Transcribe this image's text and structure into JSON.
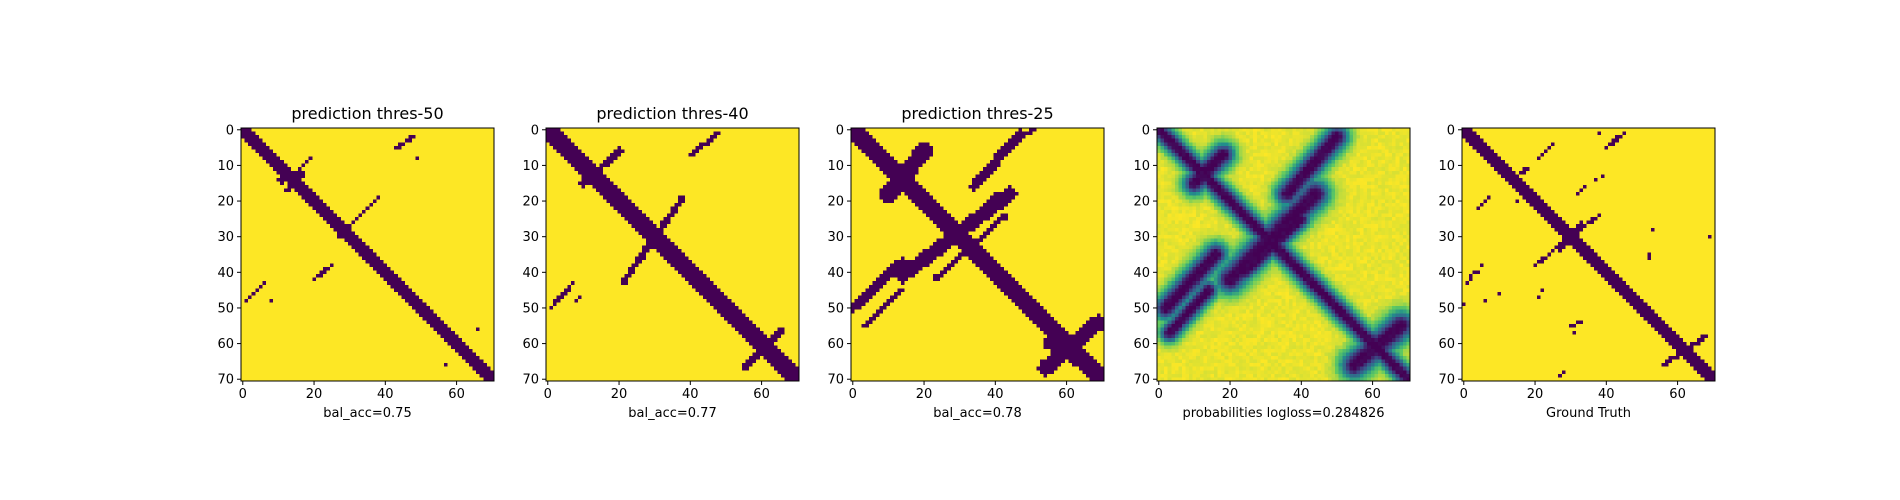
{
  "chart_data": [
    {
      "type": "heatmap",
      "title": "prediction thres-50",
      "xlabel": "bal_acc=0.75",
      "ylabel": "",
      "grid_size": 71,
      "x_range": [
        0,
        70
      ],
      "y_range": [
        0,
        70
      ],
      "y_axis": "inverted",
      "grid": false,
      "xticks": [
        0,
        20,
        40,
        60
      ],
      "yticks": [
        0,
        10,
        20,
        30,
        40,
        50,
        60,
        70
      ],
      "colormap": "viridis-binary",
      "features": [
        {
          "kind": "line",
          "from": [
            0,
            0
          ],
          "to": [
            70,
            70
          ],
          "width": 1.6
        },
        {
          "kind": "line",
          "from": [
            11,
            14
          ],
          "to": [
            16,
            12
          ],
          "width": 1.0
        },
        {
          "kind": "line",
          "from": [
            17,
            10
          ],
          "to": [
            19,
            8
          ],
          "width": 0.7
        },
        {
          "kind": "line",
          "from": [
            12,
            17
          ],
          "to": [
            17,
            13
          ],
          "width": 0.7
        },
        {
          "kind": "line",
          "from": [
            15,
            16
          ],
          "to": [
            22,
            20
          ],
          "width": 0.6
        },
        {
          "kind": "line",
          "from": [
            24,
            26
          ],
          "to": [
            29,
            30
          ],
          "width": 0.7
        },
        {
          "kind": "line",
          "from": [
            27,
            30
          ],
          "to": [
            38,
            19
          ],
          "width": 0.7
        },
        {
          "kind": "line",
          "from": [
            20,
            42
          ],
          "to": [
            25,
            38
          ],
          "width": 0.6
        },
        {
          "kind": "line",
          "from": [
            43,
            5
          ],
          "to": [
            48,
            2
          ],
          "width": 0.6
        },
        {
          "kind": "dot",
          "at": [
            49,
            8
          ],
          "width": 0.4
        },
        {
          "kind": "line",
          "from": [
            1,
            48
          ],
          "to": [
            6,
            43
          ],
          "width": 0.6
        },
        {
          "kind": "dot",
          "at": [
            8,
            48
          ],
          "width": 0.4
        },
        {
          "kind": "dot",
          "at": [
            66,
            56
          ],
          "width": 0.4
        },
        {
          "kind": "dot",
          "at": [
            57,
            66
          ],
          "width": 0.4
        }
      ]
    },
    {
      "type": "heatmap",
      "title": "prediction thres-40",
      "xlabel": "bal_acc=0.77",
      "ylabel": "",
      "grid_size": 71,
      "x_range": [
        0,
        70
      ],
      "y_range": [
        0,
        70
      ],
      "y_axis": "inverted",
      "grid": false,
      "xticks": [
        0,
        20,
        40,
        60
      ],
      "yticks": [
        0,
        10,
        20,
        30,
        40,
        50,
        60,
        70
      ],
      "colormap": "viridis-binary",
      "features": [
        {
          "kind": "line",
          "from": [
            0,
            0
          ],
          "to": [
            70,
            70
          ],
          "width": 2.2
        },
        {
          "kind": "line",
          "from": [
            10,
            15
          ],
          "to": [
            20,
            6
          ],
          "width": 1.0
        },
        {
          "kind": "line",
          "from": [
            10,
            11
          ],
          "to": [
            17,
            16
          ],
          "width": 0.7
        },
        {
          "kind": "line",
          "from": [
            15,
            18
          ],
          "to": [
            22,
            21
          ],
          "width": 0.6
        },
        {
          "kind": "line",
          "from": [
            21,
            43
          ],
          "to": [
            38,
            19
          ],
          "width": 0.9
        },
        {
          "kind": "line",
          "from": [
            40,
            7
          ],
          "to": [
            48,
            1
          ],
          "width": 0.7
        },
        {
          "kind": "line",
          "from": [
            1,
            50
          ],
          "to": [
            7,
            43
          ],
          "width": 0.6
        },
        {
          "kind": "line",
          "from": [
            8,
            48
          ],
          "to": [
            9,
            47
          ],
          "width": 0.5
        },
        {
          "kind": "line",
          "from": [
            55,
            67
          ],
          "to": [
            66,
            56
          ],
          "width": 0.9
        }
      ]
    },
    {
      "type": "heatmap",
      "title": "prediction thres-25",
      "xlabel": "bal_acc=0.78",
      "ylabel": "",
      "grid_size": 71,
      "x_range": [
        0,
        70
      ],
      "y_range": [
        0,
        70
      ],
      "y_axis": "inverted",
      "grid": false,
      "xticks": [
        0,
        20,
        40,
        60
      ],
      "yticks": [
        0,
        10,
        20,
        30,
        40,
        50,
        60,
        70
      ],
      "colormap": "viridis-binary",
      "features": [
        {
          "kind": "line",
          "from": [
            0,
            0
          ],
          "to": [
            70,
            70
          ],
          "width": 2.8
        },
        {
          "kind": "line",
          "from": [
            10,
            18
          ],
          "to": [
            20,
            6
          ],
          "width": 2.4
        },
        {
          "kind": "line",
          "from": [
            0,
            50
          ],
          "to": [
            14,
            37
          ],
          "width": 1.4
        },
        {
          "kind": "line",
          "from": [
            14,
            41
          ],
          "to": [
            44,
            18
          ],
          "width": 2.0
        },
        {
          "kind": "line",
          "from": [
            34,
            16
          ],
          "to": [
            47,
            1
          ],
          "width": 1.4
        },
        {
          "kind": "line",
          "from": [
            45,
            3
          ],
          "to": [
            51,
            0
          ],
          "width": 0.8
        },
        {
          "kind": "line",
          "from": [
            23,
            42
          ],
          "to": [
            43,
            24
          ],
          "width": 0.8
        },
        {
          "kind": "line",
          "from": [
            3,
            55
          ],
          "to": [
            14,
            45
          ],
          "width": 0.7
        },
        {
          "kind": "line",
          "from": [
            54,
            67
          ],
          "to": [
            69,
            54
          ],
          "width": 2.2
        },
        {
          "kind": "line",
          "from": [
            55,
            60
          ],
          "to": [
            68,
            68
          ],
          "width": 1.6
        },
        {
          "kind": "line",
          "from": [
            36,
            23
          ],
          "to": [
            40,
            18
          ],
          "width": 0.7
        }
      ]
    },
    {
      "type": "heatmap",
      "title": "",
      "xlabel": "probabilities logloss=0.284826",
      "ylabel": "",
      "grid_size": 71,
      "x_range": [
        0,
        70
      ],
      "y_range": [
        0,
        70
      ],
      "y_axis": "inverted",
      "grid": false,
      "xticks": [
        0,
        20,
        40,
        60
      ],
      "yticks": [
        0,
        10,
        20,
        30,
        40,
        50,
        60,
        70
      ],
      "colormap": "viridis-continuous",
      "features": [
        {
          "kind": "line",
          "from": [
            0,
            0
          ],
          "to": [
            70,
            70
          ],
          "width": 2.0
        },
        {
          "kind": "line",
          "from": [
            10,
            15
          ],
          "to": [
            18,
            7
          ],
          "width": 2.5
        },
        {
          "kind": "line",
          "from": [
            2,
            50
          ],
          "to": [
            16,
            35
          ],
          "width": 2.5
        },
        {
          "kind": "line",
          "from": [
            20,
            42
          ],
          "to": [
            44,
            18
          ],
          "width": 3.0
        },
        {
          "kind": "line",
          "from": [
            36,
            18
          ],
          "to": [
            50,
            2
          ],
          "width": 2.5
        },
        {
          "kind": "line",
          "from": [
            24,
            40
          ],
          "to": [
            40,
            25
          ],
          "width": 2.0
        },
        {
          "kind": "line",
          "from": [
            55,
            66
          ],
          "to": [
            68,
            55
          ],
          "width": 3.0
        },
        {
          "kind": "line",
          "from": [
            3,
            57
          ],
          "to": [
            14,
            45
          ],
          "width": 2.0
        }
      ]
    },
    {
      "type": "heatmap",
      "title": "",
      "xlabel": "Ground Truth",
      "ylabel": "",
      "grid_size": 71,
      "x_range": [
        0,
        70
      ],
      "y_range": [
        0,
        70
      ],
      "y_axis": "inverted",
      "grid": false,
      "xticks": [
        0,
        20,
        40,
        60
      ],
      "yticks": [
        0,
        10,
        20,
        30,
        40,
        50,
        60,
        70
      ],
      "colormap": "viridis-binary",
      "features": [
        {
          "kind": "line",
          "from": [
            0,
            0
          ],
          "to": [
            70,
            70
          ],
          "width": 1.8
        },
        {
          "kind": "line",
          "from": [
            27,
            33
          ],
          "to": [
            33,
            27
          ],
          "width": 1.0
        },
        {
          "kind": "line",
          "from": [
            20,
            38
          ],
          "to": [
            38,
            24
          ],
          "width": 0.5
        },
        {
          "kind": "line",
          "from": [
            40,
            5
          ],
          "to": [
            45,
            1
          ],
          "width": 0.5
        },
        {
          "kind": "dot",
          "at": [
            38,
            1
          ],
          "width": 0.5
        },
        {
          "kind": "line",
          "from": [
            13,
            14
          ],
          "to": [
            18,
            11
          ],
          "width": 0.6
        },
        {
          "kind": "line",
          "from": [
            21,
            8
          ],
          "to": [
            25,
            4
          ],
          "width": 0.5
        },
        {
          "kind": "line",
          "from": [
            4,
            22
          ],
          "to": [
            7,
            19
          ],
          "width": 0.5
        },
        {
          "kind": "line",
          "from": [
            15,
            20
          ],
          "to": [
            17,
            19
          ],
          "width": 0.4
        },
        {
          "kind": "line",
          "from": [
            1,
            43
          ],
          "to": [
            3,
            40
          ],
          "width": 0.5
        },
        {
          "kind": "line",
          "from": [
            4,
            40
          ],
          "to": [
            5,
            38
          ],
          "width": 0.4
        },
        {
          "kind": "dot",
          "at": [
            0,
            49
          ],
          "width": 0.5
        },
        {
          "kind": "dot",
          "at": [
            6,
            48
          ],
          "width": 0.4
        },
        {
          "kind": "dot",
          "at": [
            10,
            46
          ],
          "width": 0.4
        },
        {
          "kind": "line",
          "from": [
            21,
            47
          ],
          "to": [
            22,
            45
          ],
          "width": 0.4
        },
        {
          "kind": "line",
          "from": [
            32,
            18
          ],
          "to": [
            34,
            16
          ],
          "width": 0.4
        },
        {
          "kind": "line",
          "from": [
            37,
            14
          ],
          "to": [
            39,
            13
          ],
          "width": 0.4
        },
        {
          "kind": "line",
          "from": [
            52,
            36
          ],
          "to": [
            52,
            35
          ],
          "width": 0.4
        },
        {
          "kind": "dot",
          "at": [
            53,
            28
          ],
          "width": 0.4
        },
        {
          "kind": "dot",
          "at": [
            69,
            30
          ],
          "width": 0.5
        },
        {
          "kind": "dot",
          "at": [
            32,
            54
          ],
          "width": 0.4
        },
        {
          "kind": "dot",
          "at": [
            31,
            57
          ],
          "width": 0.4
        },
        {
          "kind": "line",
          "from": [
            30,
            55
          ],
          "to": [
            33,
            54
          ],
          "width": 0.4
        },
        {
          "kind": "line",
          "from": [
            27,
            69
          ],
          "to": [
            28,
            68
          ],
          "width": 0.4
        },
        {
          "kind": "line",
          "from": [
            56,
            66
          ],
          "to": [
            68,
            58
          ],
          "width": 0.7
        },
        {
          "kind": "line",
          "from": [
            60,
            62
          ],
          "to": [
            66,
            68
          ],
          "width": 0.7
        },
        {
          "kind": "line",
          "from": [
            11,
            12
          ],
          "to": [
            19,
            18
          ],
          "width": 0.5
        }
      ]
    }
  ]
}
